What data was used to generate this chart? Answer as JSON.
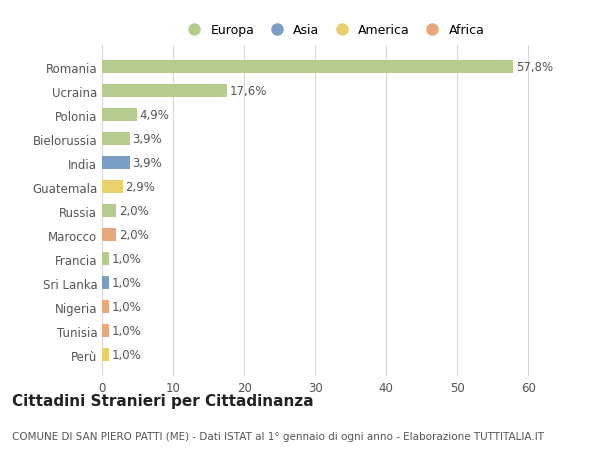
{
  "categories": [
    "Romania",
    "Ucraina",
    "Polonia",
    "Bielorussia",
    "India",
    "Guatemala",
    "Russia",
    "Marocco",
    "Francia",
    "Sri Lanka",
    "Nigeria",
    "Tunisia",
    "Perù"
  ],
  "values": [
    57.8,
    17.6,
    4.9,
    3.9,
    3.9,
    2.9,
    2.0,
    2.0,
    1.0,
    1.0,
    1.0,
    1.0,
    1.0
  ],
  "labels": [
    "57,8%",
    "17,6%",
    "4,9%",
    "3,9%",
    "3,9%",
    "2,9%",
    "2,0%",
    "2,0%",
    "1,0%",
    "1,0%",
    "1,0%",
    "1,0%",
    "1,0%"
  ],
  "continents": [
    "Europa",
    "Europa",
    "Europa",
    "Europa",
    "Asia",
    "America",
    "Europa",
    "Africa",
    "Europa",
    "Asia",
    "Africa",
    "Africa",
    "America"
  ],
  "continent_colors": {
    "Europa": "#b5cc8e",
    "Asia": "#7b9ec4",
    "America": "#e8d06a",
    "Africa": "#e8a87c"
  },
  "legend_order": [
    "Europa",
    "Asia",
    "America",
    "Africa"
  ],
  "xlim": [
    0,
    65
  ],
  "xticks": [
    0,
    10,
    20,
    30,
    40,
    50,
    60
  ],
  "title": "Cittadini Stranieri per Cittadinanza",
  "subtitle": "COMUNE DI SAN PIERO PATTI (ME) - Dati ISTAT al 1° gennaio di ogni anno - Elaborazione TUTTITALIA.IT",
  "background_color": "#ffffff",
  "grid_color": "#d8d8d8",
  "bar_height": 0.55,
  "label_fontsize": 8.5,
  "tick_fontsize": 8.5,
  "title_fontsize": 11,
  "subtitle_fontsize": 7.5
}
